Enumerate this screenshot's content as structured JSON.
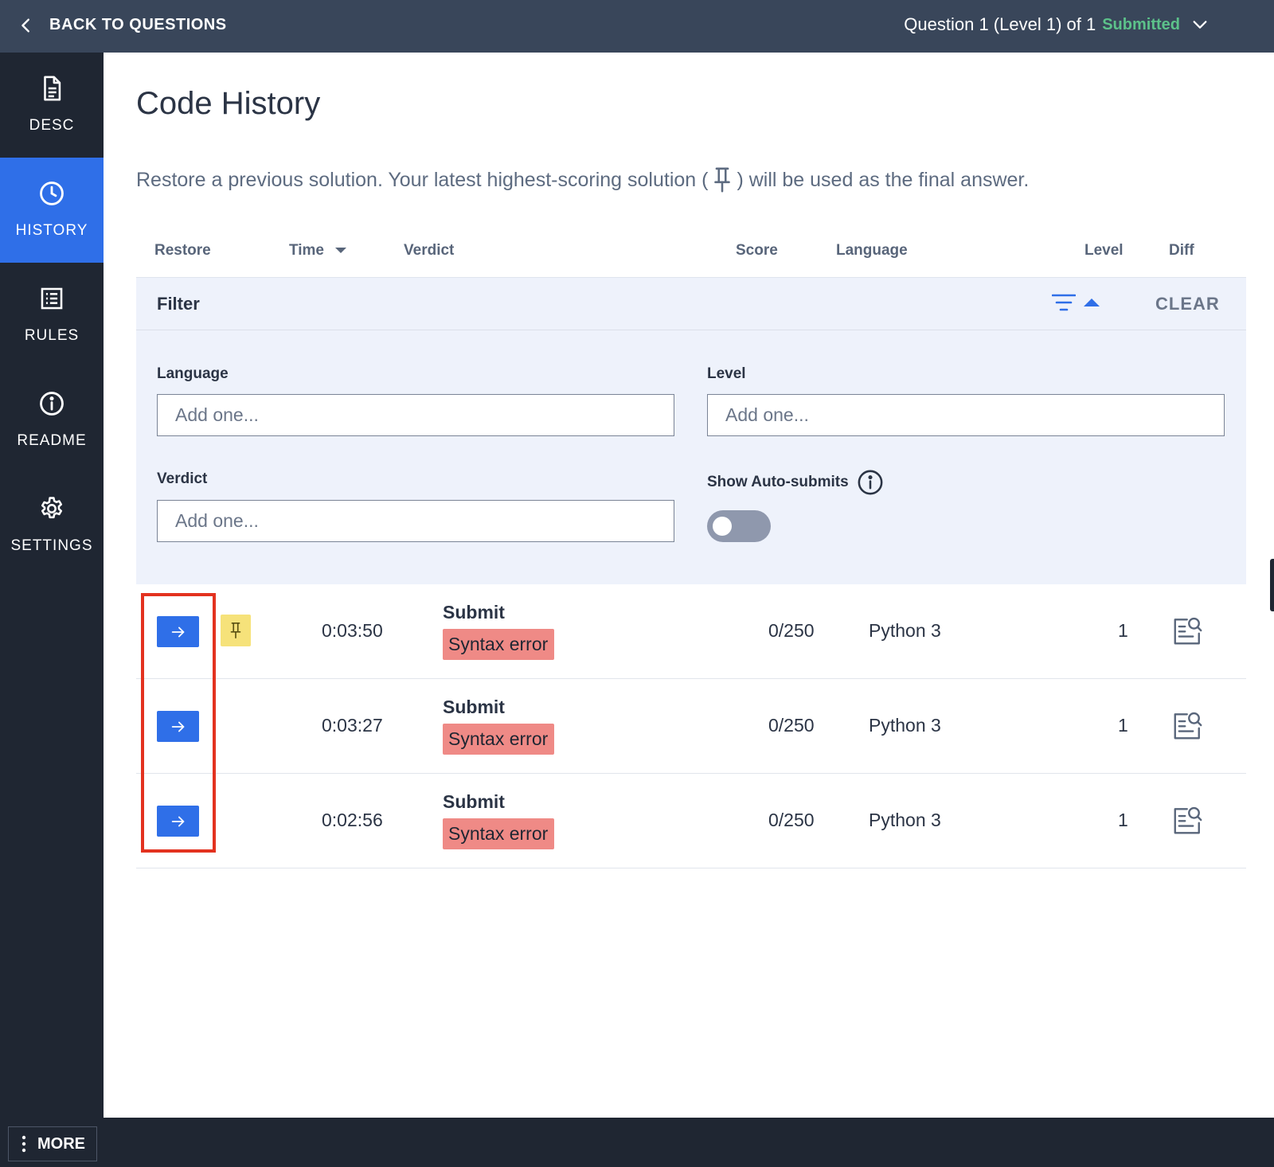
{
  "topbar": {
    "back_label": "BACK TO QUESTIONS",
    "question_info": "Question 1 (Level 1) of 1",
    "status": "Submitted",
    "status_color": "#5cc28a"
  },
  "sidebar": {
    "items": [
      {
        "label": "DESC",
        "icon": "document-icon",
        "active": false
      },
      {
        "label": "HISTORY",
        "icon": "clock-icon",
        "active": true
      },
      {
        "label": "RULES",
        "icon": "list-icon",
        "active": false
      },
      {
        "label": "README",
        "icon": "info-icon",
        "active": false
      },
      {
        "label": "SETTINGS",
        "icon": "gear-icon",
        "active": false
      }
    ],
    "more_label": "MORE"
  },
  "main": {
    "title": "Code History",
    "description_before": "Restore a previous solution. Your latest highest-scoring solution (",
    "description_after": ") will be used as the final answer."
  },
  "table": {
    "headers": {
      "restore": "Restore",
      "time": "Time",
      "verdict": "Verdict",
      "score": "Score",
      "language": "Language",
      "level": "Level",
      "diff": "Diff"
    },
    "rows": [
      {
        "time": "0:03:50",
        "verdict_type": "Submit",
        "verdict": "Syntax error",
        "score": "0/250",
        "language": "Python 3",
        "level": "1",
        "pinned": true
      },
      {
        "time": "0:03:27",
        "verdict_type": "Submit",
        "verdict": "Syntax error",
        "score": "0/250",
        "language": "Python 3",
        "level": "1",
        "pinned": false
      },
      {
        "time": "0:02:56",
        "verdict_type": "Submit",
        "verdict": "Syntax error",
        "score": "0/250",
        "language": "Python 3",
        "level": "1",
        "pinned": false
      }
    ]
  },
  "filter": {
    "title": "Filter",
    "clear_label": "CLEAR",
    "language_label": "Language",
    "language_placeholder": "Add one...",
    "level_label": "Level",
    "level_placeholder": "Add one...",
    "verdict_label": "Verdict",
    "verdict_placeholder": "Add one...",
    "auto_submits_label": "Show Auto-submits",
    "auto_submits_on": false
  },
  "colors": {
    "accent": "#2f6fe8",
    "error_badge": "#ef8a86",
    "pin_badge": "#f6e27a",
    "highlight_box": "#e3321f"
  }
}
